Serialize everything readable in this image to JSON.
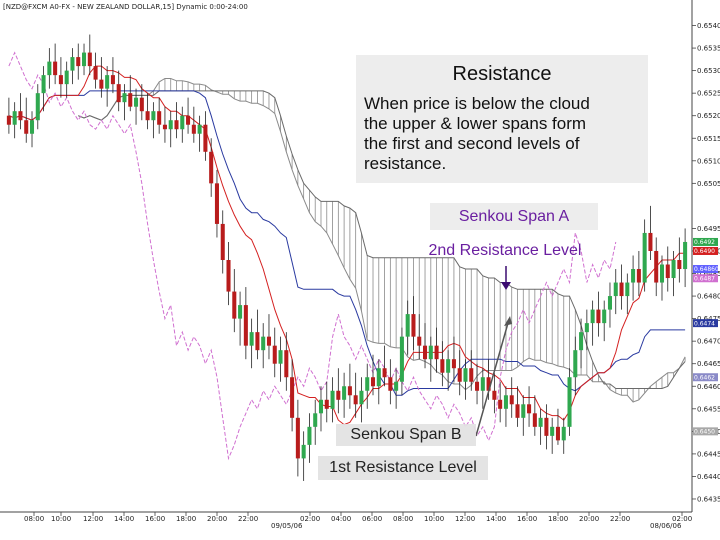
{
  "chart_data": {
    "type": "candlestick",
    "title": "[NZD@FXCM A0-FX - NEW ZEALAND DOLLAR,15] Dynamic 0:00-24:00",
    "x_tick_labels": [
      "08:00",
      "10:00",
      "12:00",
      "14:00",
      "16:00",
      "18:00",
      "20:00",
      "22:00",
      "02:00",
      "04:00",
      "06:00",
      "08:00",
      "10:00",
      "12:00",
      "14:00",
      "16:00",
      "18:00",
      "20:00",
      "22:00",
      "02:00"
    ],
    "date_labels": [
      "09/05/06",
      "08/06/06"
    ],
    "y_tick_labels": [
      "0.6540",
      "0.6535",
      "0.6530",
      "0.6525",
      "0.6520",
      "0.6515",
      "0.6510",
      "0.6505",
      "0.6495",
      "0.6490",
      "0.6485",
      "0.6480",
      "0.6475",
      "0.6470",
      "0.6465",
      "0.6460",
      "0.6455",
      "0.6450",
      "0.6445",
      "0.6440",
      "0.6435"
    ],
    "price_tags": [
      {
        "label": "0.6492",
        "color": "#2fa84f",
        "value": 0.6492
      },
      {
        "label": "0.6490",
        "color": "#d42020",
        "value": 0.649
      },
      {
        "label": "0.64860",
        "color": "#6060ff",
        "value": 0.6486
      },
      {
        "label": "0.6487",
        "color": "#d070d0",
        "value": 0.64875
      },
      {
        "label": "0.6474",
        "color": "#2a3aa0",
        "value": 0.6474
      },
      {
        "label": "0.6462",
        "color": "#8a8ac8",
        "value": 0.6462
      },
      {
        "label": "0.6450",
        "color": "#a8a8a8",
        "value": 0.645
      }
    ],
    "ylim": [
      0.6433,
      0.6543
    ],
    "candles": [
      {
        "o": 0.652,
        "h": 0.6524,
        "l": 0.6516,
        "c": 0.6518
      },
      {
        "o": 0.6518,
        "h": 0.6523,
        "l": 0.6515,
        "c": 0.6521
      },
      {
        "o": 0.6521,
        "h": 0.6525,
        "l": 0.6517,
        "c": 0.6519
      },
      {
        "o": 0.6519,
        "h": 0.6524,
        "l": 0.6514,
        "c": 0.6516
      },
      {
        "o": 0.6516,
        "h": 0.6521,
        "l": 0.6513,
        "c": 0.6519
      },
      {
        "o": 0.6519,
        "h": 0.6527,
        "l": 0.6517,
        "c": 0.6525
      },
      {
        "o": 0.6525,
        "h": 0.6531,
        "l": 0.6521,
        "c": 0.6529
      },
      {
        "o": 0.6529,
        "h": 0.6535,
        "l": 0.6526,
        "c": 0.6532
      },
      {
        "o": 0.6532,
        "h": 0.6536,
        "l": 0.6527,
        "c": 0.6529
      },
      {
        "o": 0.6529,
        "h": 0.6533,
        "l": 0.6524,
        "c": 0.6527
      },
      {
        "o": 0.6527,
        "h": 0.6532,
        "l": 0.6524,
        "c": 0.653
      },
      {
        "o": 0.653,
        "h": 0.6535,
        "l": 0.6527,
        "c": 0.6533
      },
      {
        "o": 0.6533,
        "h": 0.6536,
        "l": 0.6528,
        "c": 0.6531
      },
      {
        "o": 0.6531,
        "h": 0.6536,
        "l": 0.6529,
        "c": 0.6534
      },
      {
        "o": 0.6534,
        "h": 0.6538,
        "l": 0.6529,
        "c": 0.6531
      },
      {
        "o": 0.6531,
        "h": 0.6534,
        "l": 0.6526,
        "c": 0.6528
      },
      {
        "o": 0.6528,
        "h": 0.6533,
        "l": 0.6524,
        "c": 0.6526
      },
      {
        "o": 0.6526,
        "h": 0.6531,
        "l": 0.6522,
        "c": 0.6529
      },
      {
        "o": 0.6529,
        "h": 0.6533,
        "l": 0.6525,
        "c": 0.6527
      },
      {
        "o": 0.6527,
        "h": 0.653,
        "l": 0.6521,
        "c": 0.6523
      },
      {
        "o": 0.6523,
        "h": 0.6527,
        "l": 0.6519,
        "c": 0.6525
      },
      {
        "o": 0.6525,
        "h": 0.6529,
        "l": 0.6521,
        "c": 0.6522
      },
      {
        "o": 0.6522,
        "h": 0.6526,
        "l": 0.6518,
        "c": 0.6524
      },
      {
        "o": 0.6524,
        "h": 0.6527,
        "l": 0.6519,
        "c": 0.6521
      },
      {
        "o": 0.6521,
        "h": 0.6525,
        "l": 0.6517,
        "c": 0.6519
      },
      {
        "o": 0.6519,
        "h": 0.6523,
        "l": 0.6515,
        "c": 0.6521
      },
      {
        "o": 0.6521,
        "h": 0.6524,
        "l": 0.6516,
        "c": 0.6518
      },
      {
        "o": 0.6518,
        "h": 0.6522,
        "l": 0.6514,
        "c": 0.6517
      },
      {
        "o": 0.6517,
        "h": 0.6521,
        "l": 0.6513,
        "c": 0.6519
      },
      {
        "o": 0.6519,
        "h": 0.6523,
        "l": 0.6515,
        "c": 0.6517
      },
      {
        "o": 0.6517,
        "h": 0.6522,
        "l": 0.6514,
        "c": 0.652
      },
      {
        "o": 0.652,
        "h": 0.6524,
        "l": 0.6516,
        "c": 0.6518
      },
      {
        "o": 0.6518,
        "h": 0.6522,
        "l": 0.6514,
        "c": 0.6516
      },
      {
        "o": 0.6516,
        "h": 0.652,
        "l": 0.6512,
        "c": 0.6518
      },
      {
        "o": 0.6518,
        "h": 0.6521,
        "l": 0.651,
        "c": 0.6512
      },
      {
        "o": 0.6512,
        "h": 0.6515,
        "l": 0.6502,
        "c": 0.6505
      },
      {
        "o": 0.6505,
        "h": 0.6508,
        "l": 0.6493,
        "c": 0.6496
      },
      {
        "o": 0.6496,
        "h": 0.6499,
        "l": 0.6485,
        "c": 0.6488
      },
      {
        "o": 0.6488,
        "h": 0.6492,
        "l": 0.6478,
        "c": 0.6481
      },
      {
        "o": 0.6481,
        "h": 0.6486,
        "l": 0.6472,
        "c": 0.6475
      },
      {
        "o": 0.6475,
        "h": 0.6481,
        "l": 0.6469,
        "c": 0.6478
      },
      {
        "o": 0.6478,
        "h": 0.6482,
        "l": 0.6466,
        "c": 0.6469
      },
      {
        "o": 0.6469,
        "h": 0.6475,
        "l": 0.6464,
        "c": 0.6472
      },
      {
        "o": 0.6472,
        "h": 0.6477,
        "l": 0.6466,
        "c": 0.6468
      },
      {
        "o": 0.6468,
        "h": 0.6474,
        "l": 0.6464,
        "c": 0.6471
      },
      {
        "o": 0.6471,
        "h": 0.6476,
        "l": 0.6466,
        "c": 0.6469
      },
      {
        "o": 0.6469,
        "h": 0.6473,
        "l": 0.6462,
        "c": 0.6465
      },
      {
        "o": 0.6465,
        "h": 0.6471,
        "l": 0.6461,
        "c": 0.6468
      },
      {
        "o": 0.6468,
        "h": 0.6472,
        "l": 0.6459,
        "c": 0.6462
      },
      {
        "o": 0.6462,
        "h": 0.6466,
        "l": 0.645,
        "c": 0.6453
      },
      {
        "o": 0.6453,
        "h": 0.6457,
        "l": 0.644,
        "c": 0.6444
      },
      {
        "o": 0.6444,
        "h": 0.645,
        "l": 0.6439,
        "c": 0.6447
      },
      {
        "o": 0.6447,
        "h": 0.6454,
        "l": 0.6443,
        "c": 0.6451
      },
      {
        "o": 0.6451,
        "h": 0.6457,
        "l": 0.6447,
        "c": 0.6454
      },
      {
        "o": 0.6454,
        "h": 0.646,
        "l": 0.645,
        "c": 0.6457
      },
      {
        "o": 0.6457,
        "h": 0.6461,
        "l": 0.6452,
        "c": 0.6455
      },
      {
        "o": 0.6455,
        "h": 0.6462,
        "l": 0.6452,
        "c": 0.6459
      },
      {
        "o": 0.6459,
        "h": 0.6464,
        "l": 0.6454,
        "c": 0.6457
      },
      {
        "o": 0.6457,
        "h": 0.6463,
        "l": 0.6453,
        "c": 0.646
      },
      {
        "o": 0.646,
        "h": 0.6465,
        "l": 0.6455,
        "c": 0.6458
      },
      {
        "o": 0.6458,
        "h": 0.6463,
        "l": 0.6453,
        "c": 0.6456
      },
      {
        "o": 0.6456,
        "h": 0.6462,
        "l": 0.6452,
        "c": 0.6459
      },
      {
        "o": 0.6459,
        "h": 0.6465,
        "l": 0.6455,
        "c": 0.6462
      },
      {
        "o": 0.6462,
        "h": 0.6467,
        "l": 0.6458,
        "c": 0.646
      },
      {
        "o": 0.646,
        "h": 0.6466,
        "l": 0.6456,
        "c": 0.6464
      },
      {
        "o": 0.6464,
        "h": 0.6469,
        "l": 0.646,
        "c": 0.6462
      },
      {
        "o": 0.6462,
        "h": 0.6466,
        "l": 0.6456,
        "c": 0.6459
      },
      {
        "o": 0.6459,
        "h": 0.6464,
        "l": 0.6455,
        "c": 0.6461
      },
      {
        "o": 0.6461,
        "h": 0.6473,
        "l": 0.6458,
        "c": 0.6471
      },
      {
        "o": 0.6471,
        "h": 0.6479,
        "l": 0.6467,
        "c": 0.6476
      },
      {
        "o": 0.6476,
        "h": 0.648,
        "l": 0.6468,
        "c": 0.6471
      },
      {
        "o": 0.6471,
        "h": 0.6476,
        "l": 0.6466,
        "c": 0.6469
      },
      {
        "o": 0.6469,
        "h": 0.6474,
        "l": 0.6464,
        "c": 0.6466
      },
      {
        "o": 0.6466,
        "h": 0.6471,
        "l": 0.6461,
        "c": 0.6469
      },
      {
        "o": 0.6469,
        "h": 0.6473,
        "l": 0.6463,
        "c": 0.6466
      },
      {
        "o": 0.6466,
        "h": 0.647,
        "l": 0.646,
        "c": 0.6463
      },
      {
        "o": 0.6463,
        "h": 0.6468,
        "l": 0.6459,
        "c": 0.6466
      },
      {
        "o": 0.6466,
        "h": 0.6471,
        "l": 0.6461,
        "c": 0.6464
      },
      {
        "o": 0.6464,
        "h": 0.6468,
        "l": 0.6458,
        "c": 0.6461
      },
      {
        "o": 0.6461,
        "h": 0.6466,
        "l": 0.6457,
        "c": 0.6464
      },
      {
        "o": 0.6464,
        "h": 0.6468,
        "l": 0.6459,
        "c": 0.6461
      },
      {
        "o": 0.6461,
        "h": 0.6465,
        "l": 0.6456,
        "c": 0.6459
      },
      {
        "o": 0.6459,
        "h": 0.6464,
        "l": 0.6455,
        "c": 0.6462
      },
      {
        "o": 0.6462,
        "h": 0.6466,
        "l": 0.6457,
        "c": 0.6459
      },
      {
        "o": 0.6459,
        "h": 0.6463,
        "l": 0.6454,
        "c": 0.6457
      },
      {
        "o": 0.6457,
        "h": 0.6461,
        "l": 0.6452,
        "c": 0.6455
      },
      {
        "o": 0.6455,
        "h": 0.646,
        "l": 0.6451,
        "c": 0.6458
      },
      {
        "o": 0.6458,
        "h": 0.6462,
        "l": 0.6453,
        "c": 0.6456
      },
      {
        "o": 0.6456,
        "h": 0.646,
        "l": 0.6451,
        "c": 0.6453
      },
      {
        "o": 0.6453,
        "h": 0.6458,
        "l": 0.6449,
        "c": 0.6456
      },
      {
        "o": 0.6456,
        "h": 0.646,
        "l": 0.6451,
        "c": 0.6454
      },
      {
        "o": 0.6454,
        "h": 0.6458,
        "l": 0.6449,
        "c": 0.6451
      },
      {
        "o": 0.6451,
        "h": 0.6455,
        "l": 0.6447,
        "c": 0.6453
      },
      {
        "o": 0.6453,
        "h": 0.6456,
        "l": 0.6446,
        "c": 0.6449
      },
      {
        "o": 0.6449,
        "h": 0.6453,
        "l": 0.6445,
        "c": 0.6451
      },
      {
        "o": 0.6451,
        "h": 0.6455,
        "l": 0.6447,
        "c": 0.6448
      },
      {
        "o": 0.6448,
        "h": 0.6453,
        "l": 0.6445,
        "c": 0.6451
      },
      {
        "o": 0.6451,
        "h": 0.6464,
        "l": 0.6449,
        "c": 0.6462
      },
      {
        "o": 0.6462,
        "h": 0.6471,
        "l": 0.6458,
        "c": 0.6468
      },
      {
        "o": 0.6468,
        "h": 0.6475,
        "l": 0.6464,
        "c": 0.6472
      },
      {
        "o": 0.6472,
        "h": 0.6477,
        "l": 0.6468,
        "c": 0.6474
      },
      {
        "o": 0.6474,
        "h": 0.6479,
        "l": 0.6469,
        "c": 0.6477
      },
      {
        "o": 0.6477,
        "h": 0.6481,
        "l": 0.6471,
        "c": 0.6474
      },
      {
        "o": 0.6474,
        "h": 0.6479,
        "l": 0.647,
        "c": 0.6477
      },
      {
        "o": 0.6477,
        "h": 0.6483,
        "l": 0.6473,
        "c": 0.648
      },
      {
        "o": 0.648,
        "h": 0.6486,
        "l": 0.6476,
        "c": 0.6483
      },
      {
        "o": 0.6483,
        "h": 0.6487,
        "l": 0.6477,
        "c": 0.648
      },
      {
        "o": 0.648,
        "h": 0.6485,
        "l": 0.6476,
        "c": 0.6483
      },
      {
        "o": 0.6483,
        "h": 0.6489,
        "l": 0.6479,
        "c": 0.6486
      },
      {
        "o": 0.6486,
        "h": 0.649,
        "l": 0.648,
        "c": 0.6483
      },
      {
        "o": 0.6483,
        "h": 0.6497,
        "l": 0.6481,
        "c": 0.6494
      },
      {
        "o": 0.6494,
        "h": 0.65,
        "l": 0.6488,
        "c": 0.649
      },
      {
        "o": 0.649,
        "h": 0.6493,
        "l": 0.648,
        "c": 0.6483
      },
      {
        "o": 0.6483,
        "h": 0.6489,
        "l": 0.6479,
        "c": 0.6487
      },
      {
        "o": 0.6487,
        "h": 0.6491,
        "l": 0.6481,
        "c": 0.6484
      },
      {
        "o": 0.6484,
        "h": 0.649,
        "l": 0.648,
        "c": 0.6488
      },
      {
        "o": 0.6488,
        "h": 0.6493,
        "l": 0.6483,
        "c": 0.6486
      },
      {
        "o": 0.6486,
        "h": 0.6495,
        "l": 0.6482,
        "c": 0.6492
      }
    ]
  },
  "annotations": {
    "resistance_title": "Resistance",
    "resistance_body": "When price is below the cloud\nthe upper & lower spans form\nthe first and second levels of\nresistance.",
    "senkou_a": "Senkou Span A",
    "second_level": "2nd Resistance Level",
    "senkou_b": "Senkou Span B",
    "first_level": "1st Resistance Level"
  },
  "colors": {
    "up_candle": "#2fa84f",
    "down_candle": "#b81c1c",
    "cloud_hatch": "#8a8a8a",
    "kijun": "#2a3aa0",
    "tenkan": "#d42020",
    "chikou": "#d070d0",
    "arrow": "#3a0a70"
  }
}
